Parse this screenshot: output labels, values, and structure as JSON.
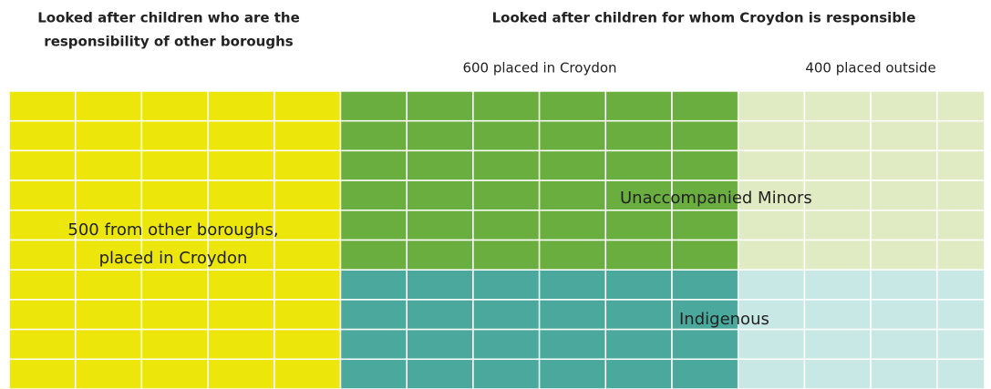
{
  "headings": {
    "left": [
      "Looked after children who are the",
      "responsibility of other boroughs"
    ],
    "right": "Looked after children for whom Croydon is responsible"
  },
  "subheadings": {
    "inside": "600 placed in Croydon",
    "outside": "400 placed outside"
  },
  "regions": {
    "other_boroughs": [
      "500 from other boroughs,",
      "placed in Croydon"
    ],
    "unaccompanied": "Unaccompanied Minors",
    "indigenous": "Indigenous"
  }
}
